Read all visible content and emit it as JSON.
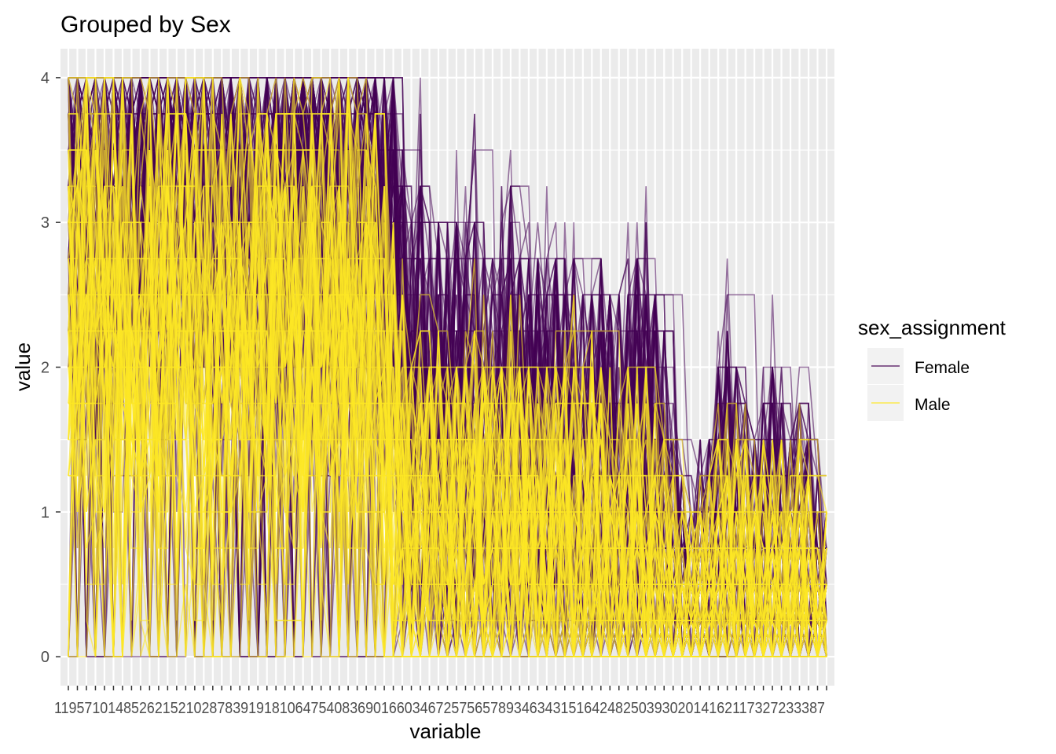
{
  "chart_data": {
    "type": "line",
    "title": "Grouped by Sex",
    "xlabel": "variable",
    "ylabel": "value",
    "ylim": [
      -0.2,
      4.2
    ],
    "y_ticks": [
      0,
      1,
      2,
      3,
      4
    ],
    "grid": true,
    "panel_background": "#ebebeb",
    "legend_position": "right",
    "legend_title": "sex_assignment",
    "x_tick_text": "119571014852621521028783919181064754083690166034672575657893463431516424825039302014162117327233387",
    "categories_count": 85,
    "series": [
      {
        "name": "Female",
        "color": "#440154",
        "count": 140,
        "profile": [
          3.2,
          3.0,
          3.3,
          3.1,
          3.2,
          3.0,
          3.3,
          3.1,
          3.1,
          3.2,
          3.0,
          3.2,
          3.1,
          3.3,
          3.1,
          3.2,
          2.9,
          3.1,
          3.0,
          3.2,
          3.0,
          3.1,
          2.9,
          3.1,
          3.0,
          3.1,
          3.2,
          3.0,
          2.9,
          3.1,
          3.0,
          3.2,
          3.0,
          3.1,
          2.9,
          2.7,
          2.5,
          1.6,
          1.4,
          1.5,
          1.3,
          1.4,
          1.2,
          1.3,
          1.3,
          1.4,
          1.2,
          1.3,
          1.2,
          1.5,
          1.3,
          1.2,
          1.3,
          1.1,
          1.2,
          1.1,
          1.2,
          1.0,
          1.1,
          1.2,
          1.0,
          0.9,
          1.0,
          1.2,
          1.1,
          0.9,
          0.8,
          0.5,
          0.4,
          0.3,
          0.4,
          0.5,
          0.8,
          0.9,
          0.8,
          0.6,
          0.5,
          0.7,
          0.8,
          0.6,
          0.6,
          0.7,
          0.5,
          0.4,
          0.3
        ],
        "spread": [
          0.9,
          1.0,
          0.9,
          1.0,
          1.0,
          1.0,
          0.9,
          1.0,
          1.0,
          0.9,
          1.0,
          1.0,
          1.0,
          0.9,
          1.0,
          1.0,
          1.0,
          1.0,
          0.9,
          1.0,
          1.0,
          1.0,
          1.0,
          0.9,
          1.0,
          1.0,
          1.0,
          1.0,
          1.0,
          1.0,
          1.0,
          1.0,
          1.0,
          1.0,
          1.0,
          1.0,
          1.0,
          1.1,
          1.0,
          1.1,
          1.0,
          1.0,
          1.0,
          1.1,
          1.0,
          1.1,
          1.0,
          1.0,
          1.0,
          1.1,
          1.0,
          1.0,
          1.0,
          1.0,
          1.0,
          1.0,
          1.0,
          1.0,
          1.0,
          1.0,
          1.0,
          1.0,
          1.0,
          1.0,
          1.0,
          1.0,
          0.9,
          0.6,
          0.5,
          0.4,
          0.5,
          0.6,
          0.8,
          0.9,
          0.8,
          0.7,
          0.6,
          0.7,
          0.8,
          0.7,
          0.6,
          0.7,
          0.6,
          0.5,
          0.4
        ]
      },
      {
        "name": "Male",
        "color": "#fde725",
        "count": 70,
        "profile": [
          2.4,
          2.2,
          2.5,
          2.2,
          2.3,
          2.1,
          2.4,
          2.2,
          2.2,
          2.3,
          2.1,
          2.3,
          2.2,
          2.4,
          2.1,
          2.3,
          2.0,
          2.2,
          2.1,
          2.3,
          2.0,
          2.2,
          2.0,
          2.2,
          2.1,
          2.2,
          2.3,
          2.1,
          2.0,
          2.2,
          2.1,
          2.3,
          2.1,
          2.2,
          2.0,
          1.7,
          1.5,
          1.1,
          0.9,
          1.0,
          0.9,
          1.0,
          0.8,
          0.9,
          0.9,
          1.0,
          0.8,
          0.9,
          0.8,
          1.0,
          0.9,
          0.8,
          0.9,
          0.7,
          0.8,
          0.7,
          0.8,
          0.7,
          0.7,
          0.8,
          0.7,
          0.6,
          0.7,
          0.8,
          0.7,
          0.6,
          0.5,
          0.4,
          0.3,
          0.3,
          0.4,
          0.4,
          0.6,
          0.6,
          0.5,
          0.5,
          0.4,
          0.5,
          0.6,
          0.5,
          0.4,
          0.5,
          0.4,
          0.3,
          0.3
        ],
        "spread": [
          1.1,
          1.1,
          1.1,
          1.1,
          1.1,
          1.1,
          1.1,
          1.1,
          1.1,
          1.1,
          1.1,
          1.1,
          1.1,
          1.1,
          1.1,
          1.1,
          1.1,
          1.1,
          1.1,
          1.1,
          1.1,
          1.1,
          1.1,
          1.1,
          1.1,
          1.1,
          1.1,
          1.1,
          1.1,
          1.1,
          1.1,
          1.1,
          1.1,
          1.1,
          1.1,
          1.0,
          1.0,
          0.9,
          0.8,
          0.9,
          0.8,
          0.8,
          0.8,
          0.8,
          0.8,
          0.9,
          0.8,
          0.8,
          0.8,
          0.9,
          0.8,
          0.8,
          0.8,
          0.8,
          0.8,
          0.8,
          0.8,
          0.8,
          0.8,
          0.8,
          0.8,
          0.7,
          0.8,
          0.8,
          0.8,
          0.7,
          0.7,
          0.5,
          0.4,
          0.4,
          0.5,
          0.5,
          0.6,
          0.7,
          0.6,
          0.6,
          0.5,
          0.6,
          0.6,
          0.6,
          0.5,
          0.6,
          0.5,
          0.4,
          0.4
        ]
      }
    ],
    "note_values_rounded_to": 0.25
  }
}
